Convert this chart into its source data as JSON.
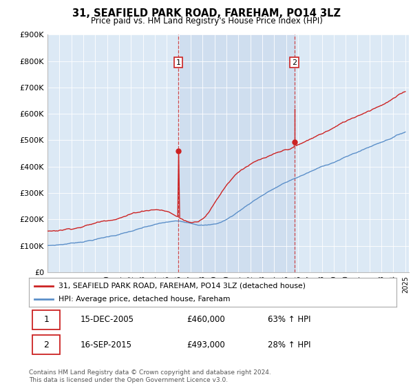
{
  "title": "31, SEAFIELD PARK ROAD, FAREHAM, PO14 3LZ",
  "subtitle": "Price paid vs. HM Land Registry's House Price Index (HPI)",
  "ylim": [
    0,
    900000
  ],
  "yticks": [
    0,
    100000,
    200000,
    300000,
    400000,
    500000,
    600000,
    700000,
    800000,
    900000
  ],
  "ytick_labels": [
    "£0",
    "£100K",
    "£200K",
    "£300K",
    "£400K",
    "£500K",
    "£600K",
    "£700K",
    "£800K",
    "£900K"
  ],
  "hpi_color": "#5b8fc9",
  "price_color": "#cc2222",
  "sale1_year": 2005.96,
  "sale1_price_val": 460000,
  "sale2_year": 2015.71,
  "sale2_price_val": 493000,
  "sale1_date": "15-DEC-2005",
  "sale1_price": "£460,000",
  "sale1_hpi": "63% ↑ HPI",
  "sale2_date": "16-SEP-2015",
  "sale2_price": "£493,000",
  "sale2_hpi": "28% ↑ HPI",
  "legend_line1": "31, SEAFIELD PARK ROAD, FAREHAM, PO14 3LZ (detached house)",
  "legend_line2": "HPI: Average price, detached house, Fareham",
  "footer": "Contains HM Land Registry data © Crown copyright and database right 2024.\nThis data is licensed under the Open Government Licence v3.0.",
  "bg_color": "#dce9f5",
  "shade_color": "#c8d8ed"
}
